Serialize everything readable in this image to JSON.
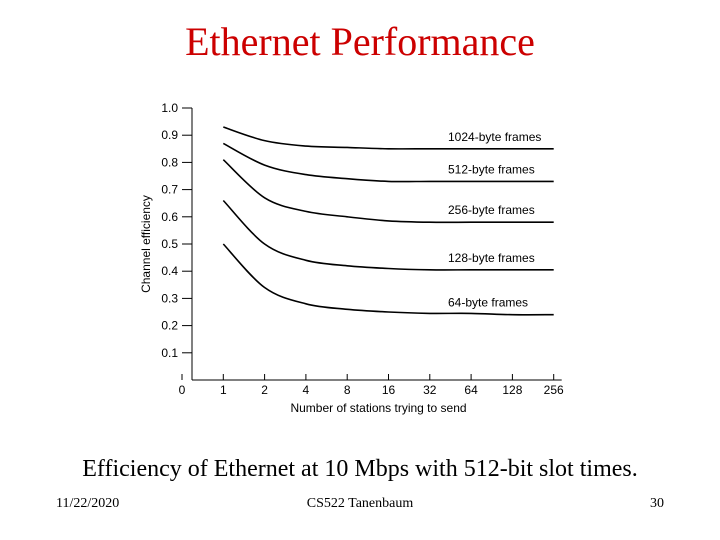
{
  "slide": {
    "title": "Ethernet Performance",
    "caption": "Efficiency of Ethernet at 10 Mbps with 512-bit slot times.",
    "footer_date": "11/22/2020",
    "footer_course": "CS522 Tanenbaum",
    "footer_page": "30"
  },
  "chart_data": {
    "type": "line",
    "title": "",
    "xlabel": "Number of stations trying to send",
    "ylabel": "Channel efficiency",
    "x_categories": [
      "0",
      "1",
      "2",
      "4",
      "8",
      "16",
      "32",
      "64",
      "128",
      "256"
    ],
    "y_ticks": [
      "0.1",
      "0.2",
      "0.3",
      "0.4",
      "0.5",
      "0.6",
      "0.7",
      "0.8",
      "0.9",
      "1.0"
    ],
    "ylim": [
      0,
      1.0
    ],
    "grid": false,
    "series": [
      {
        "name": "1024-byte frames",
        "x": [
          1,
          2,
          4,
          8,
          16,
          32,
          64,
          128,
          256
        ],
        "y": [
          0.93,
          0.88,
          0.86,
          0.855,
          0.85,
          0.85,
          0.85,
          0.85,
          0.85
        ]
      },
      {
        "name": "512-byte frames",
        "x": [
          1,
          2,
          4,
          8,
          16,
          32,
          64,
          128,
          256
        ],
        "y": [
          0.87,
          0.79,
          0.755,
          0.74,
          0.73,
          0.73,
          0.73,
          0.73,
          0.73
        ]
      },
      {
        "name": "256-byte frames",
        "x": [
          1,
          2,
          4,
          8,
          16,
          32,
          64,
          128,
          256
        ],
        "y": [
          0.81,
          0.67,
          0.62,
          0.6,
          0.585,
          0.58,
          0.58,
          0.58,
          0.58
        ]
      },
      {
        "name": "128-byte frames",
        "x": [
          1,
          2,
          4,
          8,
          16,
          32,
          64,
          128,
          256
        ],
        "y": [
          0.66,
          0.5,
          0.44,
          0.42,
          0.41,
          0.405,
          0.405,
          0.405,
          0.405
        ]
      },
      {
        "name": "64-byte frames",
        "x": [
          1,
          2,
          4,
          8,
          16,
          32,
          64,
          128,
          256
        ],
        "y": [
          0.5,
          0.34,
          0.28,
          0.26,
          0.25,
          0.245,
          0.245,
          0.24,
          0.24
        ]
      }
    ]
  }
}
